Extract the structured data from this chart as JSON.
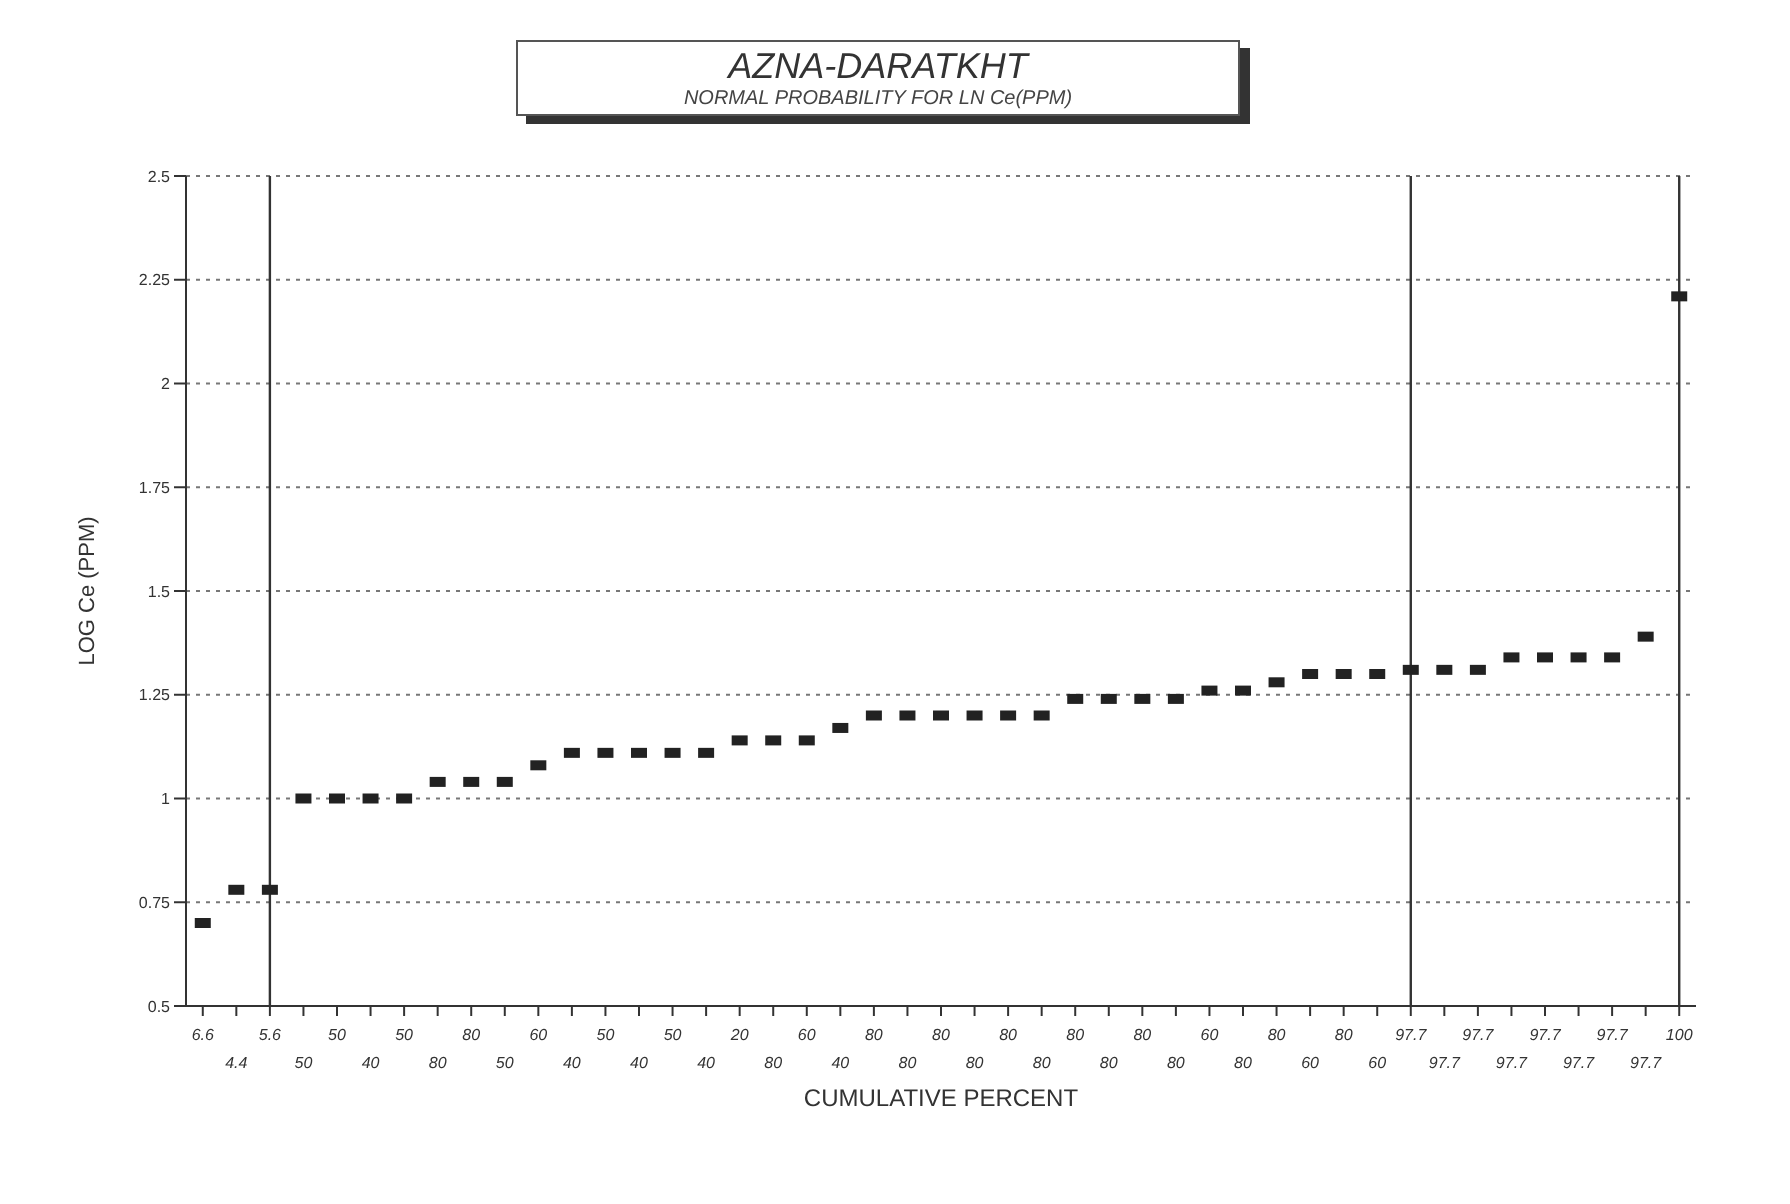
{
  "chart_data": {
    "type": "scatter",
    "title": "AZNA-DARATKHT",
    "subtitle": "NORMAL PROBABILITY FOR LN Ce(PPM)",
    "xlabel": "CUMULATIVE PERCENT",
    "ylabel": "LOG Ce (PPM)",
    "categories": [
      "6.6",
      "4.4",
      "5.6",
      "50",
      "50",
      "40",
      "50",
      "80",
      "80",
      "50",
      "60",
      "40",
      "50",
      "40",
      "50",
      "40",
      "20",
      "80",
      "60",
      "40",
      "80",
      "80",
      "80",
      "80",
      "80",
      "80",
      "80",
      "80",
      "80",
      "80",
      "60",
      "80",
      "80",
      "60",
      "80",
      "60",
      "97.7",
      "97.7",
      "97.7",
      "97.7",
      "97.7",
      "97.7",
      "97.7",
      "97.7",
      "100"
    ],
    "series": [
      {
        "color": "#222222",
        "values": [
          0.7,
          0.78,
          0.78,
          1.0,
          1.0,
          1.0,
          1.0,
          1.04,
          1.04,
          1.04,
          1.08,
          1.11,
          1.11,
          1.11,
          1.11,
          1.11,
          1.14,
          1.14,
          1.14,
          1.17,
          1.2,
          1.2,
          1.2,
          1.2,
          1.2,
          1.2,
          1.24,
          1.24,
          1.24,
          1.24,
          1.26,
          1.26,
          1.28,
          1.3,
          1.3,
          1.3,
          1.31,
          1.31,
          1.31,
          1.34,
          1.34,
          1.34,
          1.34,
          1.39,
          2.21
        ]
      }
    ],
    "ylim": [
      0.5,
      2.5
    ],
    "yticks": [
      0.5,
      0.75,
      1,
      1.25,
      1.5,
      1.75,
      2,
      2.25,
      2.5
    ],
    "grid": "y",
    "marker": "square",
    "legend": false,
    "ref_lines": [
      {
        "axis": "x",
        "value": "5.6",
        "color": "#333333"
      },
      {
        "axis": "x",
        "value": "97.7",
        "color": "#333333"
      },
      {
        "axis": "x",
        "value": "100",
        "color": "#333333"
      }
    ]
  }
}
